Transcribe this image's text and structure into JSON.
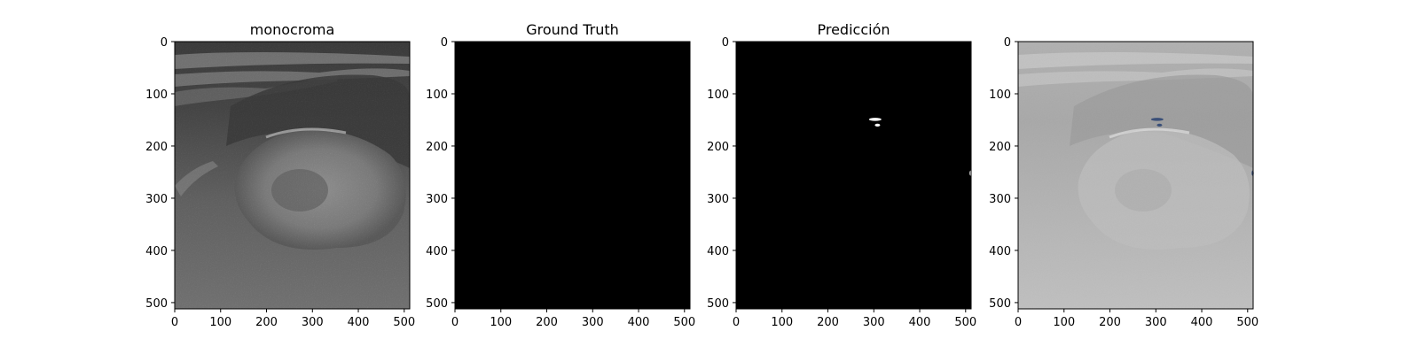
{
  "panels": [
    {
      "title": "monocroma",
      "image": "ultrasound-grayscale"
    },
    {
      "title": "Ground Truth",
      "image": "black-mask"
    },
    {
      "title": "Predicción",
      "image": "predicted-mask"
    },
    {
      "title": "",
      "image": "overlay"
    }
  ],
  "axes": {
    "xlim": [
      0,
      512
    ],
    "ylim": [
      512,
      0
    ],
    "xticks": [
      0,
      100,
      200,
      300,
      400,
      500
    ],
    "yticks": [
      0,
      100,
      200,
      300,
      400,
      500
    ]
  },
  "prediction_blobs": [
    {
      "x": 303,
      "y": 149
    },
    {
      "x": 308,
      "y": 160
    },
    {
      "x": 511,
      "y": 252
    }
  ],
  "colors": {
    "mask_background": "#000000",
    "mask_foreground": "#ffffff",
    "overlay_highlight": "#3a4f78"
  }
}
